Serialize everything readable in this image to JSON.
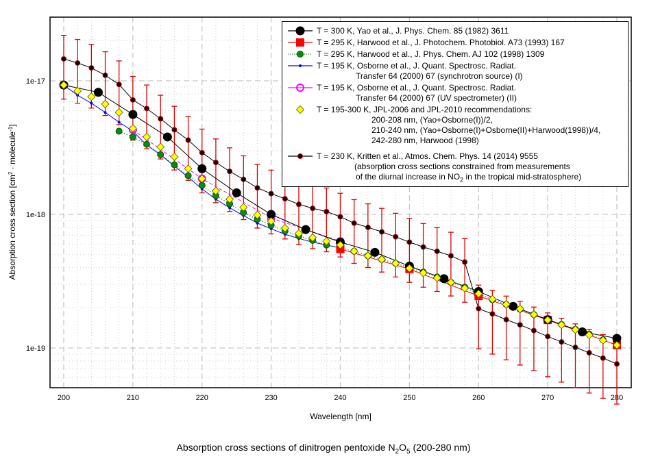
{
  "chart_data": {
    "type": "scatter",
    "title": "Absorption cross sections of dinitrogen pentoxide N2O5 (200-280 nm)",
    "title_parts": {
      "pre": "Absorption cross sections of dinitrogen pentoxide N",
      "sub1": "2",
      "mid": "O",
      "sub2": "5",
      "post": " (200-280 nm)"
    },
    "xlabel": "Wavelength [nm]",
    "ylabel": "Absorption cross section [cm² · molecule⁻¹]",
    "xlim": [
      198,
      282
    ],
    "ylim": [
      5e-20,
      3e-17
    ],
    "yscale": "log",
    "xticks": [
      200,
      210,
      220,
      230,
      240,
      250,
      260,
      270,
      280
    ],
    "xtick_labels": [
      "200",
      "210",
      "220",
      "230",
      "240",
      "250",
      "260",
      "270",
      "280"
    ],
    "yticks": [
      1e-19,
      1e-18,
      1e-17
    ],
    "ytick_labels": [
      "1e-19",
      "1e-18",
      "1e-17"
    ],
    "grid": true,
    "legend_position": "top-right",
    "series": [
      {
        "name": "yao",
        "label": "T = 300 K, Yao et al., J. Phys. Chem. 85 (1982) 3611",
        "color": "#000000",
        "marker": "circle-large",
        "line": "solid",
        "x": [
          200,
          205,
          210,
          215,
          220,
          225,
          230,
          235,
          240,
          245,
          250,
          255,
          260,
          265,
          270,
          275,
          280
        ],
        "y": [
          9.3e-18,
          8.2e-18,
          5.6e-18,
          3.8e-18,
          2.2e-18,
          1.45e-18,
          1e-18,
          7.7e-19,
          6.2e-19,
          5.2e-19,
          4.1e-19,
          3.3e-19,
          2.65e-19,
          2.05e-19,
          1.63e-19,
          1.32e-19,
          1.18e-19
        ]
      },
      {
        "name": "harwood1993",
        "label": "T = 295 K, Harwood et al., J. Photochem. Photobiol. A73 (1993) 167",
        "color": "#ff0000",
        "marker": "square",
        "line": "solid",
        "x": [
          240,
          250,
          260,
          270,
          280
        ],
        "y": [
          5.5e-19,
          3.9e-19,
          2.45e-19,
          1.62e-19,
          1.05e-19
        ]
      },
      {
        "name": "harwood1998",
        "label": "T = 295 K, Harwood et al., J. Phys. Chem. AJ 102 (1998) 1309",
        "color": "#008000",
        "marker": "circle",
        "line": "dotted",
        "x": [
          208,
          210,
          212,
          214,
          216,
          218,
          220,
          222,
          224,
          226,
          228,
          230,
          232,
          234,
          236,
          238,
          240,
          242,
          244,
          246,
          248,
          250,
          252,
          254,
          256,
          258,
          260,
          262,
          264,
          266,
          268,
          270,
          272,
          274,
          276,
          278,
          280
        ],
        "y": [
          4.2e-18,
          3.8e-18,
          3.35e-18,
          2.8e-18,
          2.35e-18,
          1.95e-18,
          1.65e-18,
          1.38e-18,
          1.2e-18,
          1.03e-18,
          9.2e-19,
          8.3e-19,
          7.5e-19,
          6.9e-19,
          6.4e-19,
          5.9e-19,
          5.6e-19,
          5.3e-19,
          4.9e-19,
          4.6e-19,
          4.3e-19,
          4e-19,
          3.7e-19,
          3.4e-19,
          3.1e-19,
          2.85e-19,
          2.55e-19,
          2.3e-19,
          2.12e-19,
          1.95e-19,
          1.78e-19,
          1.63e-19,
          1.5e-19,
          1.38e-19,
          1.27e-19,
          1.15e-19,
          1.05e-19
        ]
      },
      {
        "name": "osborne1",
        "label": "T = 195 K, Osborne et al., J. Quant. Spectrosc. Radiat.",
        "label_cont": "Transfer 64 (2000) 67 (synchrotron source) (I)",
        "color": "#0000ff",
        "marker": "dot",
        "line": "solid",
        "x": [
          200,
          202,
          204,
          206,
          208,
          210,
          212,
          214,
          216,
          218,
          220,
          222,
          224,
          226,
          228,
          230,
          232,
          234,
          236,
          238,
          240
        ],
        "y": [
          9.3e-18,
          7.8e-18,
          6.8e-18,
          5.8e-18,
          4.9e-18,
          4.2e-18,
          3.3e-18,
          2.8e-18,
          2.3e-18,
          1.9e-18,
          1.55e-18,
          1.3e-18,
          1.12e-18,
          9.8e-19,
          8.6e-19,
          7.8e-19,
          7.1e-19,
          6.6e-19,
          6.2e-19,
          5.9e-19,
          5.6e-19
        ]
      },
      {
        "name": "osborne2",
        "label": "T = 195 K, Osborne et al., J. Quant. Spectrosc. Radiat.",
        "label_cont": "Transfer 64 (2000) 67 (UV spectrometer) (II)",
        "color": "#ff00ff",
        "marker": "circle-open",
        "line": "dashed",
        "x": [
          210,
          220,
          230,
          240
        ],
        "y": [
          4.3e-18,
          1.85e-18,
          9.4e-19,
          6.3e-19
        ]
      },
      {
        "name": "jpl",
        "label": "T = 195-300 K, JPL-2006 and JPL-2010 recommendations:",
        "label_cont": [
          "200-208 nm, (Yao+Osborne(I))/2,",
          "210-240 nm, (Yao+Osborne(I)+Osborne(II)+Harwood(1998))/4,",
          "242-280 nm, Harwood (1998)"
        ],
        "color": "#ffff00",
        "marker": "diamond",
        "line": "none",
        "x": [
          200,
          202,
          204,
          206,
          208,
          210,
          212,
          214,
          216,
          218,
          220,
          222,
          224,
          226,
          228,
          230,
          232,
          234,
          236,
          238,
          240,
          242,
          244,
          246,
          248,
          250,
          252,
          254,
          256,
          258,
          260,
          262,
          264,
          266,
          268,
          270,
          272,
          274,
          276,
          278,
          280
        ],
        "y": [
          9.3e-18,
          8.4e-18,
          7.6e-18,
          6.7e-18,
          5.8e-18,
          4.4e-18,
          3.8e-18,
          3.2e-18,
          2.7e-18,
          2.2e-18,
          1.85e-18,
          1.5e-18,
          1.3e-18,
          1.13e-18,
          9.9e-19,
          8.9e-19,
          7.9e-19,
          7.2e-19,
          6.7e-19,
          6.3e-19,
          5.9e-19,
          5.3e-19,
          4.9e-19,
          4.6e-19,
          4.3e-19,
          3.95e-19,
          3.65e-19,
          3.35e-19,
          3.1e-19,
          2.8e-19,
          2.55e-19,
          2.32e-19,
          2.12e-19,
          1.96e-19,
          1.78e-19,
          1.62e-19,
          1.49e-19,
          1.37e-19,
          1.25e-19,
          1.14e-19,
          1.05e-19
        ]
      },
      {
        "name": "kritten",
        "label": "T = 230 K, Kritten et al., Atmos. Chem. Phys. 14 (2014) 9555",
        "label_cont": [
          "(absorption cross sections constrained from measurements",
          "of the diurnal increase in NO2 in the tropical mid-stratosphere)"
        ],
        "color": "#000000",
        "marker_edge": "#cc0000",
        "errorbar_color": "#dd0000",
        "marker": "dot-small",
        "line": "solid",
        "x": [
          200,
          202,
          204,
          206,
          208,
          210,
          212,
          214,
          216,
          218,
          220,
          222,
          224,
          226,
          228,
          230,
          232,
          234,
          236,
          238,
          240,
          242,
          244,
          246,
          248,
          250,
          252,
          254,
          256,
          258,
          260,
          262,
          264,
          266,
          268,
          270,
          272,
          274,
          276,
          278,
          280
        ],
        "y": [
          1.46e-17,
          1.36e-17,
          1.25e-17,
          1.1e-17,
          9.4e-18,
          7.2e-18,
          6.2e-18,
          5.2e-18,
          4.3e-18,
          3.6e-18,
          2.9e-18,
          2.45e-18,
          2.1e-18,
          1.83e-18,
          1.58e-18,
          1.43e-18,
          1.31e-18,
          1.19e-18,
          1.11e-18,
          1.05e-18,
          9.6e-19,
          8.6e-19,
          8e-19,
          7.4e-19,
          6.8e-19,
          6.2e-19,
          5.7e-19,
          5.3e-19,
          4.9e-19,
          4.4e-19,
          1.97e-19,
          1.8e-19,
          1.63e-19,
          1.49e-19,
          1.35e-19,
          1.22e-19,
          1.11e-19,
          1.01e-19,
          9.2e-20,
          8.4e-20,
          7.6e-20
        ],
        "err_rel": 0.5
      }
    ]
  }
}
